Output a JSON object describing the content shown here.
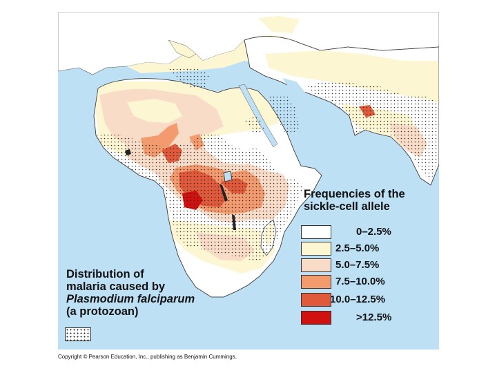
{
  "colors": {
    "ocean": "#bde0f5",
    "land": "#ffffff",
    "freq_0_2_5": "#ffffff",
    "freq_2_5_5": "#fdf6d2",
    "freq_5_7_5": "#f9dcc8",
    "freq_7_5_10": "#f39a6e",
    "freq_10_12_5": "#e0593a",
    "freq_over_12_5": "#d11010",
    "malaria_dots": "#222222"
  },
  "legend": {
    "title_line1": "Frequencies of the",
    "title_line2": "sickle-cell allele",
    "items": [
      {
        "label": "0–2.5%",
        "color": "#ffffff"
      },
      {
        "label": "2.5–5.0%",
        "color": "#fdf6d2"
      },
      {
        "label": "5.0–7.5%",
        "color": "#f9dcc8"
      },
      {
        "label": "7.5–10.0%",
        "color": "#f39a6e"
      },
      {
        "label": "10.0–12.5%",
        "color": "#e0593a"
      },
      {
        "label": ">12.5%",
        "color": "#d11010"
      }
    ]
  },
  "malaria": {
    "line1": "Distribution of",
    "line2": "malaria caused by",
    "line3": "Plasmodium falciparum",
    "line4": "(a protozoan)",
    "pattern_icon": "dotted-pattern-icon"
  },
  "copyright": "Copyright © Pearson Education, Inc., publishing as Benjamin Cummings."
}
